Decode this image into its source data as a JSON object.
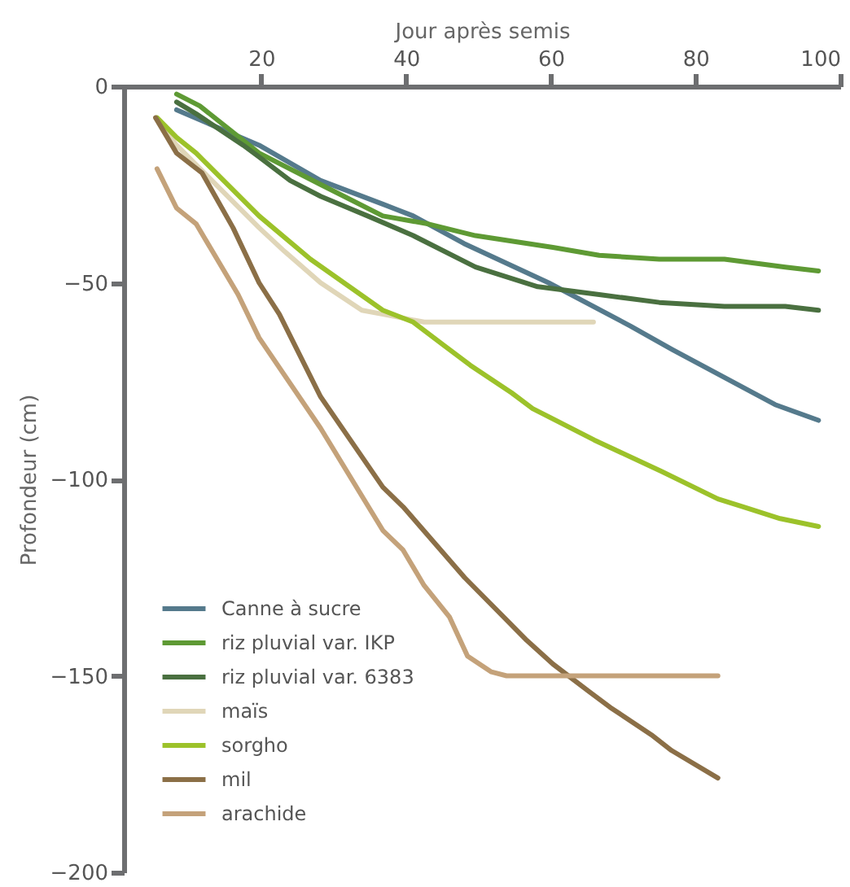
{
  "chart_data": {
    "type": "line",
    "xlabel": "Jour après semis",
    "ylabel": "Profondeur (cm)",
    "xlim": [
      1,
      100
    ],
    "xticks": [
      20,
      40,
      60,
      80,
      100
    ],
    "ylim": [
      -200,
      0
    ],
    "yticks": [
      0,
      -50,
      -100,
      -150,
      -200
    ],
    "legend": "bottom left",
    "grid": false,
    "marker": "none",
    "line_style": "solid",
    "series": [
      {
        "name": "Canne à sucre",
        "color": "#557a8c",
        "x": [
          8.3,
          19.7,
          28.2,
          36.8,
          41,
          48,
          59.7,
          71,
          76.8,
          91,
          97
        ],
        "values": [
          -6,
          -15,
          -24,
          -30,
          -33,
          -40,
          -50,
          -61,
          -67,
          -81,
          -85
        ]
      },
      {
        "name": "riz pluvial var. IKP",
        "color": "#5e9a34",
        "x": [
          8.3,
          11.5,
          19.7,
          28.2,
          36.8,
          43,
          49.6,
          60.3,
          66.7,
          75,
          84,
          92.4,
          97
        ],
        "values": [
          -2,
          -5,
          -17,
          -25,
          -33,
          -35,
          -38,
          -41,
          -43,
          -44,
          -44,
          -46,
          -47
        ]
      },
      {
        "name": "riz pluvial var. 6383",
        "color": "#4a7040",
        "x": [
          8.3,
          11,
          17.5,
          19.7,
          24,
          28.2,
          34.7,
          41,
          49.6,
          58.2,
          66.7,
          75,
          84,
          92.4,
          97
        ],
        "values": [
          -4,
          -7,
          -15,
          -18,
          -24,
          -28,
          -33,
          -38,
          -46,
          -51,
          -53,
          -55,
          -56,
          -56,
          -57
        ]
      },
      {
        "name": "maïs",
        "color": "#e0d6b8",
        "x": [
          5.4,
          8.3,
          19.7,
          23.2,
          28.2,
          33.9,
          36.8,
          42.5,
          65.9
        ],
        "values": [
          -8,
          -15,
          -36,
          -42,
          -50,
          -57,
          -58,
          -60,
          -60
        ]
      },
      {
        "name": "sorgho",
        "color": "#9cc22a",
        "x": [
          5.6,
          8.3,
          11,
          19.7,
          26.8,
          36.8,
          41,
          45.3,
          48.9,
          54.6,
          57.5,
          66,
          69.5,
          75.3,
          83.1,
          86.6,
          91.7,
          97
        ],
        "values": [
          -8,
          -13,
          -17,
          -33,
          -44,
          -57,
          -60,
          -66,
          -71,
          -78,
          -82,
          -90,
          -93,
          -98,
          -105,
          -107,
          -110,
          -112
        ]
      },
      {
        "name": "mil",
        "color": "#8b6f47",
        "x": [
          5.4,
          8.3,
          11.8,
          16.1,
          19.7,
          22.5,
          28.2,
          36.8,
          39.6,
          48.1,
          56.7,
          60.3,
          65.3,
          68.2,
          73.9,
          76.7,
          83.1
        ],
        "values": [
          -8,
          -17,
          -22,
          -36,
          -50,
          -58,
          -79,
          -102,
          -107,
          -125,
          -141,
          -147,
          -154,
          -158,
          -165,
          -169,
          -176
        ]
      },
      {
        "name": "arachide",
        "color": "#c4a27a",
        "x": [
          5.6,
          8.3,
          11,
          16.8,
          19.7,
          28.2,
          36.8,
          39.6,
          42.5,
          46,
          48.5,
          51.8,
          53.9,
          83.1
        ],
        "values": [
          -21,
          -31,
          -35,
          -53,
          -64,
          -87,
          -113,
          -118,
          -127,
          -135,
          -145,
          -149,
          -150,
          -150
        ]
      }
    ]
  }
}
